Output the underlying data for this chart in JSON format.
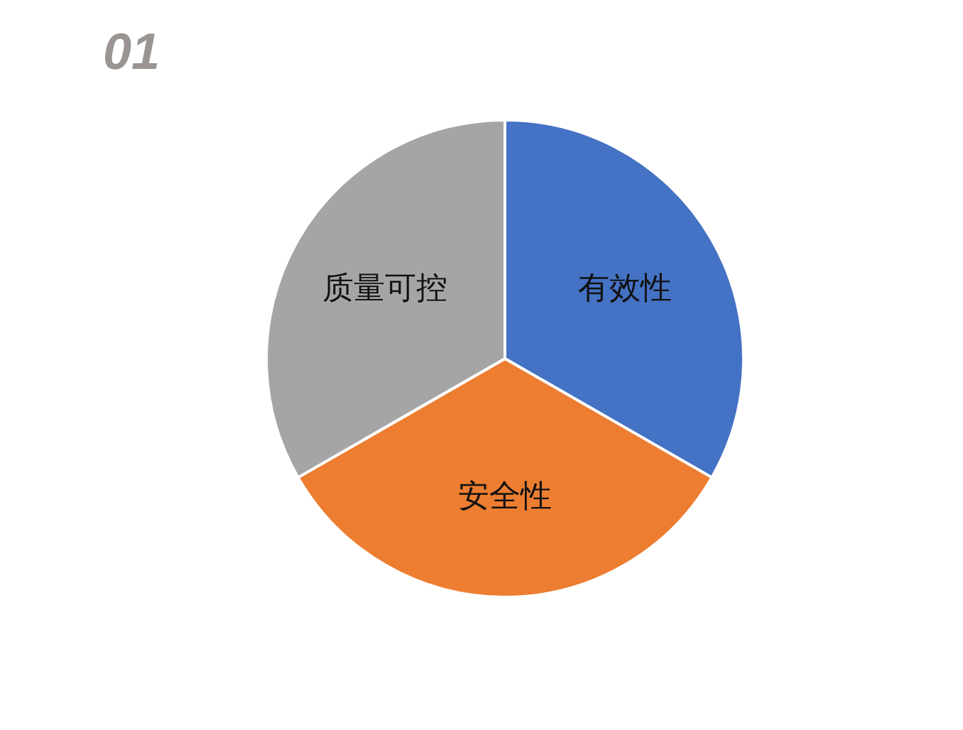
{
  "chart_data": {
    "type": "pie",
    "title": "01",
    "categories": [
      "有效性",
      "安全性",
      "质量可控"
    ],
    "values": [
      33.3,
      33.4,
      33.3
    ],
    "colors": [
      "#4472c4",
      "#ed7d31",
      "#a5a5a5"
    ]
  }
}
